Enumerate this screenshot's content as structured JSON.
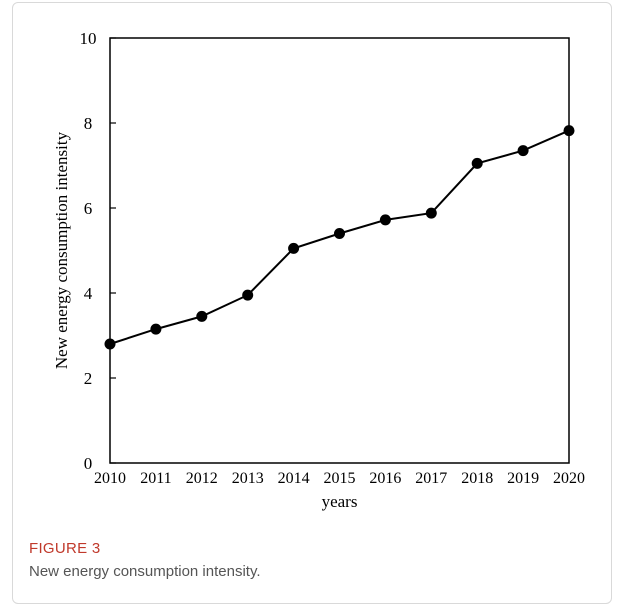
{
  "chart_data": {
    "type": "line",
    "x": [
      2010,
      2011,
      2012,
      2013,
      2014,
      2015,
      2016,
      2017,
      2018,
      2019,
      2020
    ],
    "values": [
      2.8,
      3.15,
      3.45,
      3.95,
      5.05,
      5.4,
      5.72,
      5.88,
      7.05,
      7.35,
      7.82
    ],
    "xlabel": "years",
    "ylabel": "New energy consumption intensity",
    "xticks": [
      "2010",
      "2011",
      "2012",
      "2013",
      "2014",
      "2015",
      "2016",
      "2017",
      "2018",
      "2019",
      "2020"
    ],
    "yticks": [
      "0",
      "2",
      "4",
      "6",
      "8",
      "10"
    ],
    "ylim": [
      0,
      10
    ],
    "grid": false,
    "marker": "filled-circle",
    "line_color": "#000000"
  },
  "caption": {
    "label": "FIGURE 3",
    "text": "New energy consumption intensity."
  },
  "colors": {
    "figure_label": "#c0392b",
    "caption_text": "#555555"
  }
}
